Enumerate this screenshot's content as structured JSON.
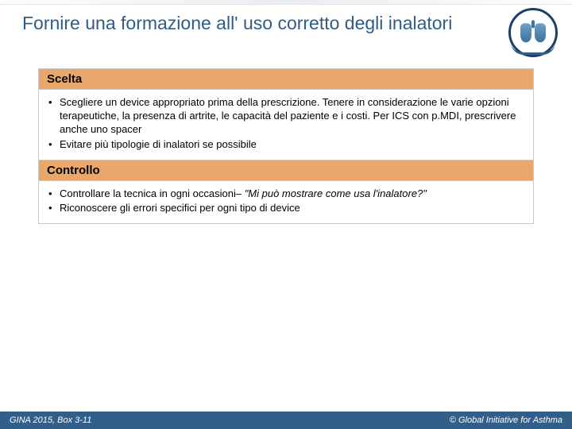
{
  "colors": {
    "title": "#2f5d88",
    "section_header_bg": "#e9a86b",
    "footer_bg": "#325e8a",
    "border": "#c9c9c9",
    "text": "#000000",
    "footer_text": "#ffffff"
  },
  "typography": {
    "title_fontsize": 23,
    "section_header_fontsize": 15,
    "body_fontsize": 13,
    "footer_fontsize": 11
  },
  "title": "Fornire una formazione all' uso corretto degli inalatori",
  "sections": [
    {
      "header": "Scelta",
      "bullets": [
        {
          "text": "Scegliere un device appropriato prima della prescrizione. Tenere in considerazione le varie opzioni terapeutiche, la presenza di artrite, le capacità del paziente e i costi. Per ICS con p.MDI, prescrivere anche uno spacer"
        },
        {
          "text": "Evitare più tipologie di inalatori se possibile"
        }
      ]
    },
    {
      "header": "Controllo",
      "bullets": [
        {
          "prefix": "Controllare la tecnica in ogni occasioni– ",
          "italic": "\"Mi può mostrare come usa l'inalatore?\""
        },
        {
          "text": "Riconoscere gli errori  specifici per ogni tipo di device"
        }
      ]
    }
  ],
  "footer": {
    "left": "GINA 2015, Box 3-11",
    "right": "© Global Initiative for Asthma"
  },
  "logo": {
    "name": "gina-lungs-logo"
  }
}
